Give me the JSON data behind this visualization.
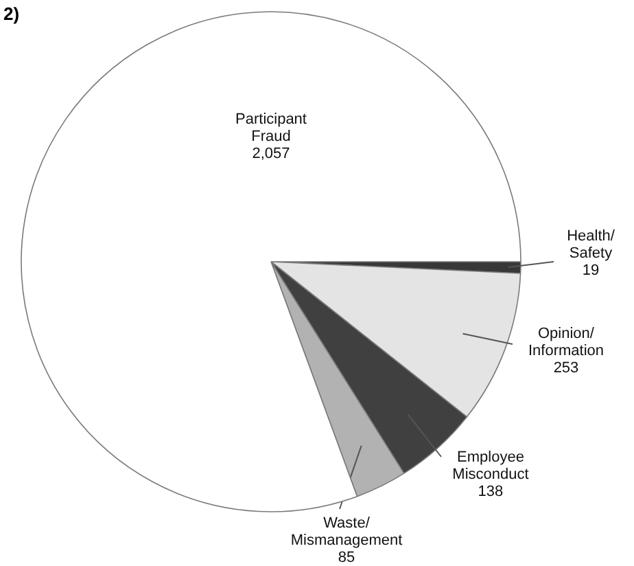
{
  "chart_data": {
    "type": "pie",
    "title": "2)",
    "categories": [
      "Health/Safety",
      "Opinion/Information",
      "Employee Misconduct",
      "Waste/Mismanagement",
      "Participant Fraud"
    ],
    "values": [
      19,
      253,
      138,
      85,
      2057
    ],
    "value_labels": [
      "19",
      "253",
      "138",
      "85",
      "2,057"
    ],
    "colors": [
      "#383838",
      "#e4e4e4",
      "#404040",
      "#b2b2b2",
      "#ffffff"
    ]
  }
}
